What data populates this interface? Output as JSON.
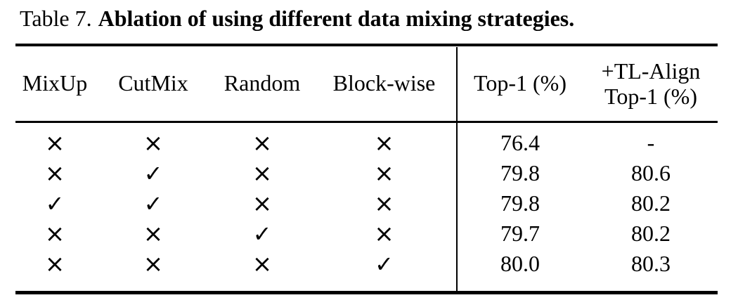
{
  "caption": {
    "label": "Table 7.",
    "text": "Ablation of using different data mixing strategies."
  },
  "table": {
    "columns": [
      {
        "label": "MixUp"
      },
      {
        "label": "CutMix"
      },
      {
        "label": "Random"
      },
      {
        "label": "Block-wise"
      },
      {
        "label": "Top-1 (%)"
      },
      {
        "line1": "+TL-Align",
        "line2": "Top-1 (%)"
      }
    ],
    "marks": {
      "check": "✓",
      "cross": "×"
    },
    "rows": [
      {
        "cells": [
          "×",
          "×",
          "×",
          "×",
          "76.4",
          "-"
        ]
      },
      {
        "cells": [
          "×",
          "✓",
          "×",
          "×",
          "79.8",
          "80.6"
        ]
      },
      {
        "cells": [
          "✓",
          "✓",
          "×",
          "×",
          "79.8",
          "80.2"
        ]
      },
      {
        "cells": [
          "×",
          "×",
          "✓",
          "×",
          "79.7",
          "80.2"
        ]
      },
      {
        "cells": [
          "×",
          "×",
          "×",
          "✓",
          "80.0",
          "80.3"
        ]
      }
    ]
  }
}
